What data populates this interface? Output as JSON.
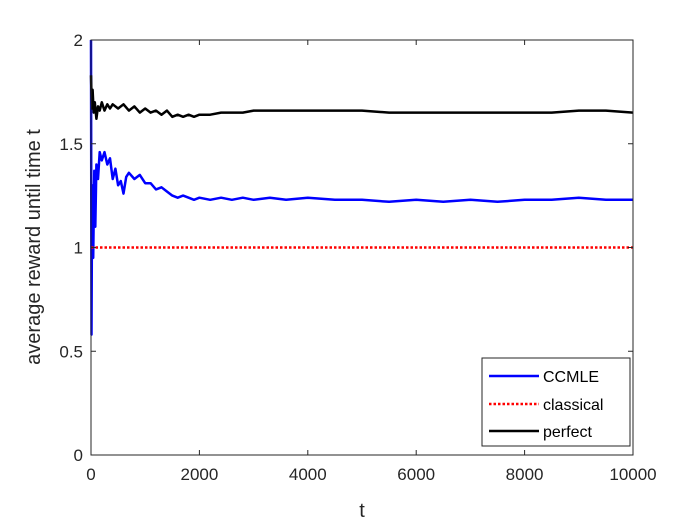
{
  "chart_data": {
    "type": "line",
    "xlabel": "t",
    "ylabel": "average reward until time t",
    "xlim": [
      0,
      10000
    ],
    "ylim": [
      0,
      2
    ],
    "x_ticks": [
      0,
      2000,
      4000,
      6000,
      8000,
      10000
    ],
    "y_ticks": [
      0,
      0.5,
      1,
      1.5,
      2
    ],
    "x_tick_labels": [
      "0",
      "2000",
      "4000",
      "6000",
      "8000",
      "10000"
    ],
    "y_tick_labels": [
      "0",
      "0.5",
      "1",
      "1.5",
      "2"
    ],
    "grid": false,
    "legend_position": "bottom-right",
    "series": [
      {
        "name": "CCMLE",
        "color": "#0000ff",
        "style": "solid",
        "x": [
          0,
          10,
          20,
          40,
          60,
          80,
          100,
          130,
          160,
          200,
          250,
          300,
          350,
          400,
          450,
          500,
          550,
          600,
          650,
          700,
          800,
          900,
          1000,
          1100,
          1200,
          1300,
          1400,
          1500,
          1600,
          1700,
          1800,
          1900,
          2000,
          2200,
          2400,
          2600,
          2800,
          3000,
          3300,
          3600,
          4000,
          4500,
          5000,
          5500,
          6000,
          6500,
          7000,
          7500,
          8000,
          8500,
          9000,
          9500,
          10000
        ],
        "values": [
          2.0,
          0.58,
          1.3,
          0.95,
          1.37,
          1.1,
          1.4,
          1.33,
          1.46,
          1.42,
          1.46,
          1.4,
          1.43,
          1.33,
          1.38,
          1.3,
          1.32,
          1.26,
          1.34,
          1.36,
          1.33,
          1.35,
          1.31,
          1.31,
          1.28,
          1.29,
          1.27,
          1.25,
          1.24,
          1.25,
          1.24,
          1.23,
          1.24,
          1.23,
          1.24,
          1.23,
          1.24,
          1.23,
          1.24,
          1.23,
          1.24,
          1.23,
          1.23,
          1.22,
          1.23,
          1.22,
          1.23,
          1.22,
          1.23,
          1.23,
          1.24,
          1.23,
          1.23
        ]
      },
      {
        "name": "classical",
        "color": "#ff0000",
        "style": "dotted",
        "x": [
          0,
          10000
        ],
        "values": [
          1.0,
          1.0
        ]
      },
      {
        "name": "perfect",
        "color": "#000000",
        "style": "solid",
        "x": [
          0,
          15,
          30,
          50,
          70,
          100,
          130,
          160,
          200,
          250,
          300,
          350,
          400,
          500,
          600,
          700,
          800,
          900,
          1000,
          1100,
          1200,
          1300,
          1400,
          1500,
          1600,
          1700,
          1800,
          1900,
          2000,
          2200,
          2400,
          2600,
          2800,
          3000,
          3300,
          3600,
          4000,
          4500,
          5000,
          5500,
          6000,
          6500,
          7000,
          7500,
          8000,
          8500,
          9000,
          9500,
          10000
        ],
        "values": [
          1.83,
          1.67,
          1.76,
          1.65,
          1.7,
          1.62,
          1.68,
          1.66,
          1.7,
          1.66,
          1.69,
          1.67,
          1.69,
          1.67,
          1.69,
          1.66,
          1.68,
          1.65,
          1.67,
          1.65,
          1.66,
          1.64,
          1.66,
          1.63,
          1.64,
          1.63,
          1.64,
          1.63,
          1.64,
          1.64,
          1.65,
          1.65,
          1.65,
          1.66,
          1.66,
          1.66,
          1.66,
          1.66,
          1.66,
          1.65,
          1.65,
          1.65,
          1.65,
          1.65,
          1.65,
          1.65,
          1.66,
          1.66,
          1.65
        ]
      }
    ]
  }
}
